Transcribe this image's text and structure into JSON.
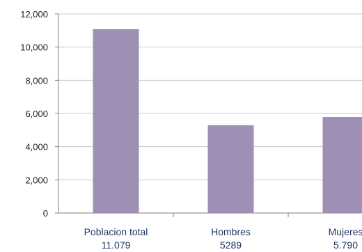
{
  "chart_data": {
    "type": "bar",
    "title": "",
    "xlabel": "",
    "ylabel": "",
    "categories": [
      "Poblacion total",
      "Hombres",
      "Mujeres"
    ],
    "category_values_text": [
      "11.079",
      "5289",
      "5.790"
    ],
    "values": [
      11079,
      5289,
      5790
    ],
    "ylim": [
      0,
      12000
    ],
    "yticks": [
      0,
      2000,
      4000,
      6000,
      8000,
      10000,
      12000
    ],
    "ytick_labels": [
      "0",
      "2,000",
      "4,000",
      "6,000",
      "8,000",
      "10,000",
      "12,000"
    ],
    "grid": true,
    "legend": "none",
    "colors": {
      "bar": "#9e8fb5",
      "grid": "#c8c8c8",
      "axis": "#7f7f7f",
      "label": "#1f3864"
    }
  }
}
